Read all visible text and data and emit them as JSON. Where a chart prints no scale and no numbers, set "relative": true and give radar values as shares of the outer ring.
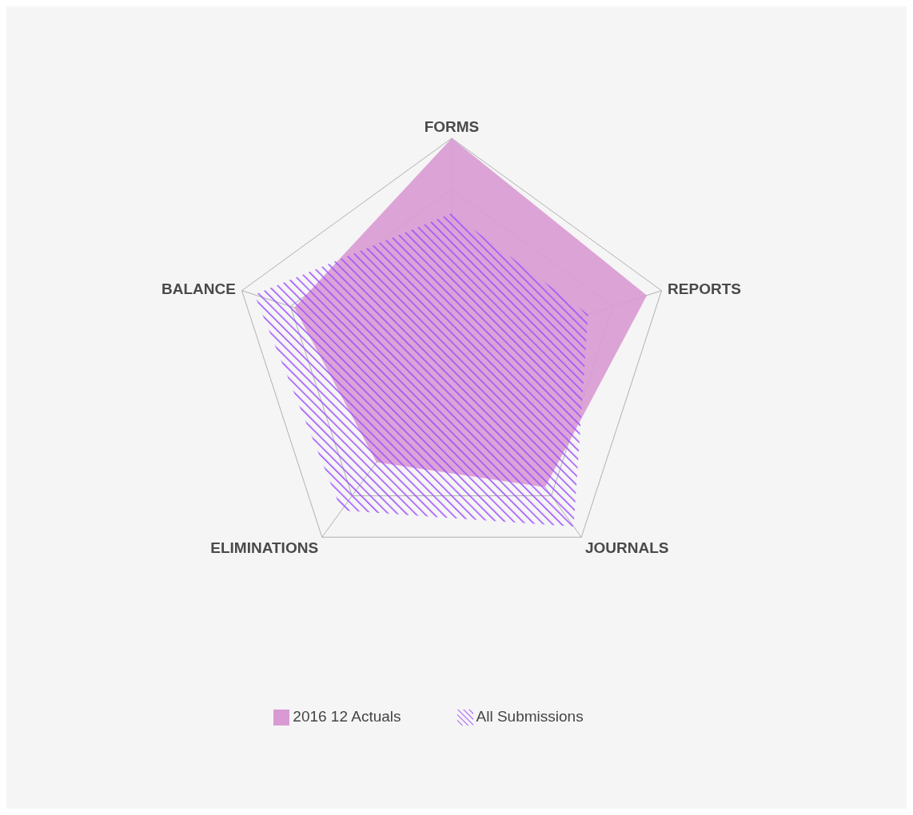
{
  "chart_data": {
    "type": "radar",
    "relative": true,
    "categories": [
      "FORMS",
      "REPORTS",
      "JOURNALS",
      "ELIMINATIONS",
      "BALANCE"
    ],
    "series": [
      {
        "name": "2016 12 Actuals",
        "color": "#d99ad3",
        "values": [
          1.0,
          0.93,
          0.72,
          0.58,
          0.75
        ]
      },
      {
        "name": "All Submissions",
        "color": "#9b4dff",
        "values": [
          0.66,
          0.65,
          0.94,
          0.85,
          0.94
        ]
      }
    ],
    "grid": true,
    "legend": "bottom"
  }
}
